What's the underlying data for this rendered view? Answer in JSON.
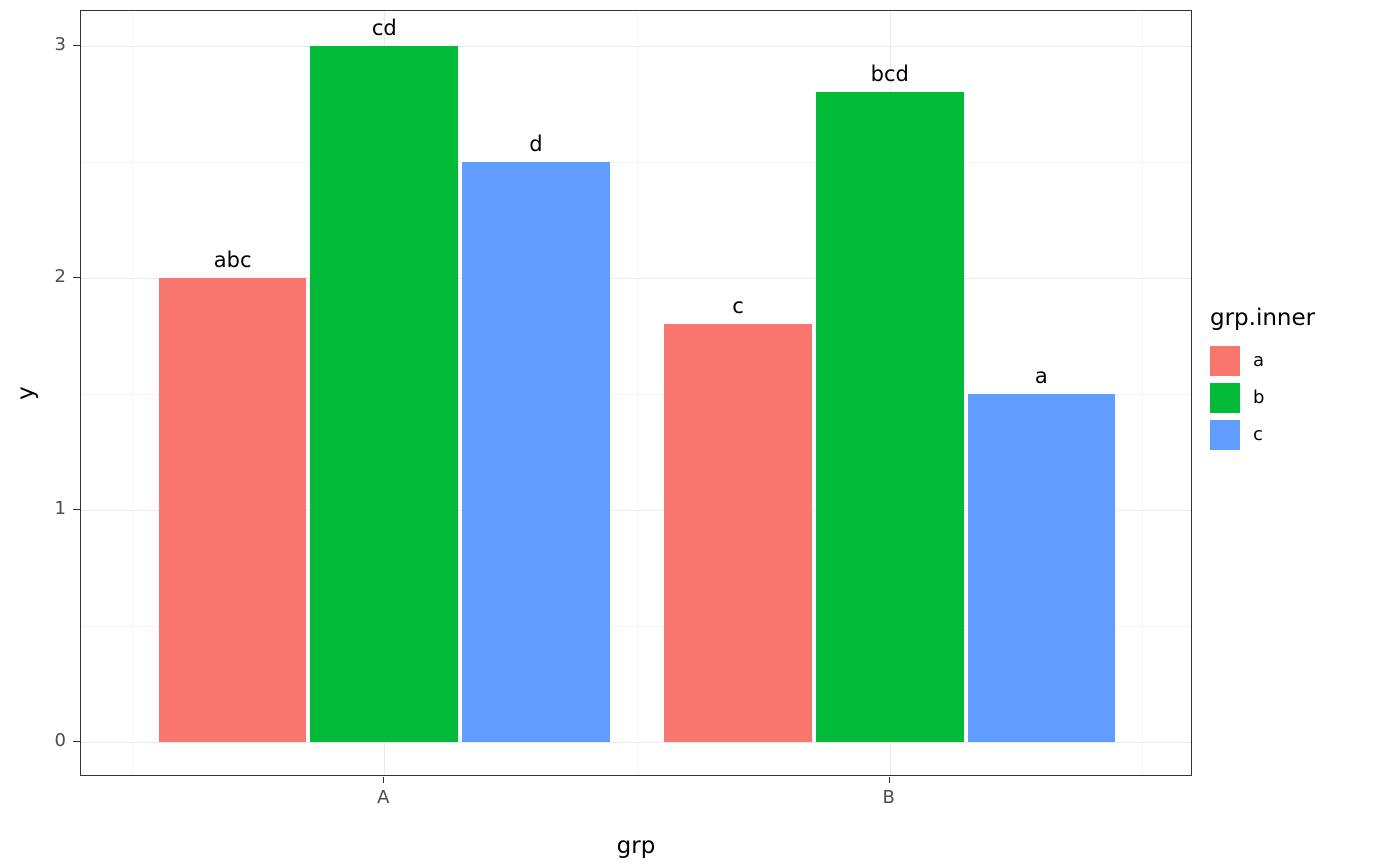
{
  "chart_data": {
    "type": "bar",
    "title": "",
    "xlabel": "grp",
    "ylabel": "y",
    "categories": [
      "A",
      "B"
    ],
    "series": [
      {
        "name": "a",
        "color": "#F8766D",
        "values": [
          2.0,
          1.8
        ],
        "bar_labels": [
          "abc",
          "c"
        ]
      },
      {
        "name": "b",
        "color": "#00BA38",
        "values": [
          3.0,
          2.8
        ],
        "bar_labels": [
          "cd",
          "bcd"
        ]
      },
      {
        "name": "c",
        "color": "#619CFF",
        "values": [
          2.5,
          1.5
        ],
        "bar_labels": [
          "d",
          "a"
        ]
      }
    ],
    "yticks": [
      0,
      1,
      2,
      3
    ],
    "ylim": [
      0,
      3
    ],
    "y_expansion": 0.05,
    "grid": true,
    "legend": {
      "title": "grp.inner",
      "position": "right",
      "entries": [
        "a",
        "b",
        "c"
      ]
    }
  }
}
